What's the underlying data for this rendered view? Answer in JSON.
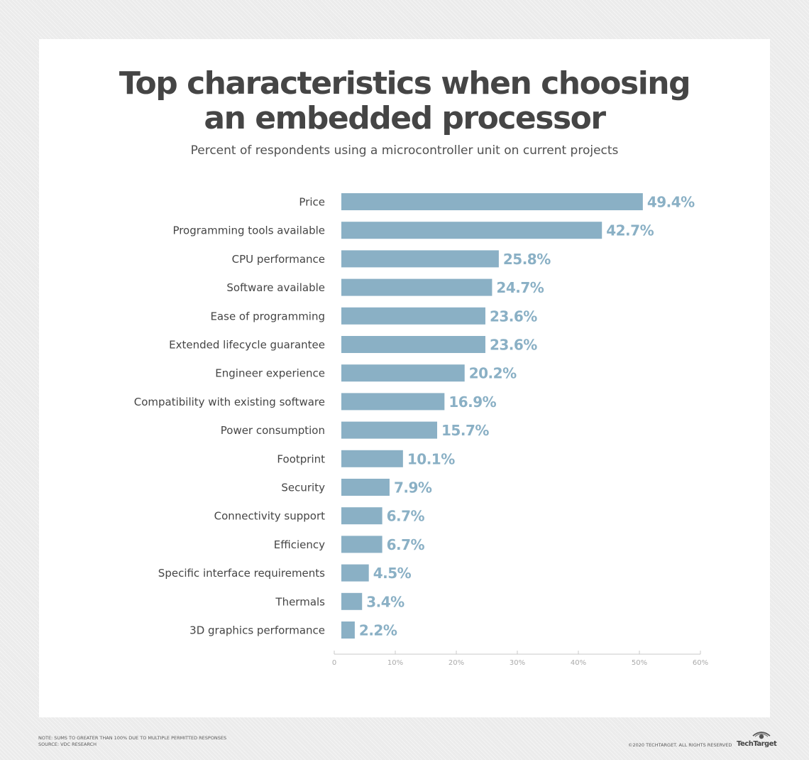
{
  "title_line1": "Top characteristics when choosing",
  "title_line2": "an embedded processor",
  "subtitle": "Percent of respondents using a microcontroller unit on current projects",
  "note": "NOTE: SUMS TO GREATER THAN 100% DUE TO MULTIPLE PERMITTED RESPONSES",
  "source": "SOURCE: VDC RESEARCH",
  "copyright": "©2020 TECHTARGET. ALL RIGHTS RESERVED",
  "logo_text": "TechTarget",
  "colors": {
    "bar": "#8ab0c5",
    "label": "#8ab0c5",
    "category": "#454545",
    "axis": "#c8c8c8",
    "tick": "#aaaaaa"
  },
  "chart_data": {
    "type": "bar",
    "orientation": "horizontal",
    "categories": [
      "Price",
      "Programming tools available",
      "CPU performance",
      "Software available",
      "Ease of programming",
      "Extended lifecycle guarantee",
      "Engineer experience",
      "Compatibility with existing software",
      "Power consumption",
      "Footprint",
      "Security",
      "Connectivity support",
      "Efficiency",
      "Specific interface requirements",
      "Thermals",
      "3D graphics performance"
    ],
    "values": [
      49.4,
      42.7,
      25.8,
      24.7,
      23.6,
      23.6,
      20.2,
      16.9,
      15.7,
      10.1,
      7.9,
      6.7,
      6.7,
      4.5,
      3.4,
      2.2
    ],
    "value_labels": [
      "49.4%",
      "42.7%",
      "25.8%",
      "24.7%",
      "23.6%",
      "23.6%",
      "20.2%",
      "16.9%",
      "15.7%",
      "10.1%",
      "7.9%",
      "6.7%",
      "6.7%",
      "4.5%",
      "3.4%",
      "2.2%"
    ],
    "xlim": [
      0,
      60
    ],
    "xticks": [
      0,
      10,
      20,
      30,
      40,
      50,
      60
    ],
    "xtick_labels": [
      "0",
      "10%",
      "20%",
      "30%",
      "40%",
      "50%",
      "60%"
    ],
    "grid": false
  }
}
